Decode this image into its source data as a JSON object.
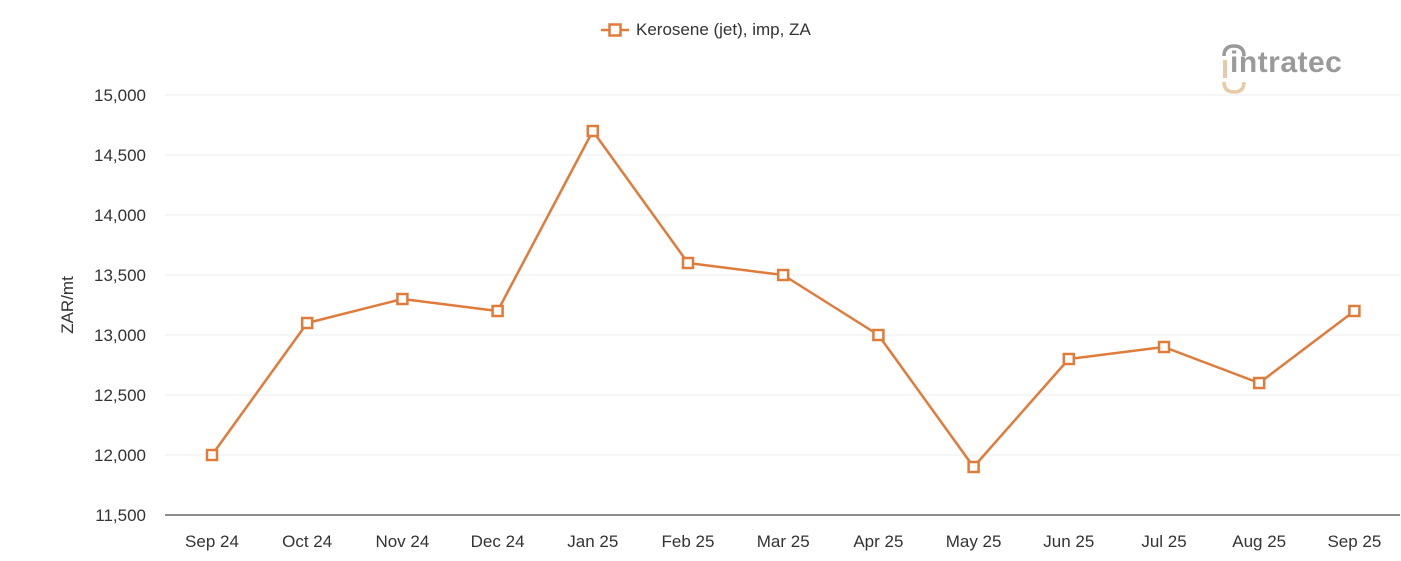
{
  "legend": {
    "label": "Kerosene (jet), imp, ZA",
    "marker": "hollow-square-line"
  },
  "logo": {
    "text": "intratec",
    "accent_color": "#e8c9a8",
    "text_color": "#9a9a9a"
  },
  "colors": {
    "series": "#e07b39",
    "grid": "#eeeeee",
    "axis": "#666666",
    "text": "#333333"
  },
  "chart_data": {
    "type": "line",
    "title": "",
    "xlabel": "",
    "ylabel": "ZAR/mt",
    "ylim": [
      11500,
      15000
    ],
    "yticks": [
      11500,
      12000,
      12500,
      13000,
      13500,
      14000,
      14500,
      15000
    ],
    "ytick_labels": [
      "11,500",
      "12,000",
      "12,500",
      "13,000",
      "13,500",
      "14,000",
      "14,500",
      "15,000"
    ],
    "grid": true,
    "legend_position": "top-center",
    "categories": [
      "Sep 24",
      "Oct 24",
      "Nov 24",
      "Dec 24",
      "Jan 25",
      "Feb 25",
      "Mar 25",
      "Apr 25",
      "May 25",
      "Jun 25",
      "Jul 25",
      "Aug 25",
      "Sep 25"
    ],
    "series": [
      {
        "name": "Kerosene (jet), imp, ZA",
        "color": "#e07b39",
        "marker": "square-hollow",
        "values": [
          12000,
          13100,
          13300,
          13200,
          14700,
          13600,
          13500,
          13000,
          11900,
          12800,
          12900,
          12600,
          13200
        ]
      }
    ]
  }
}
